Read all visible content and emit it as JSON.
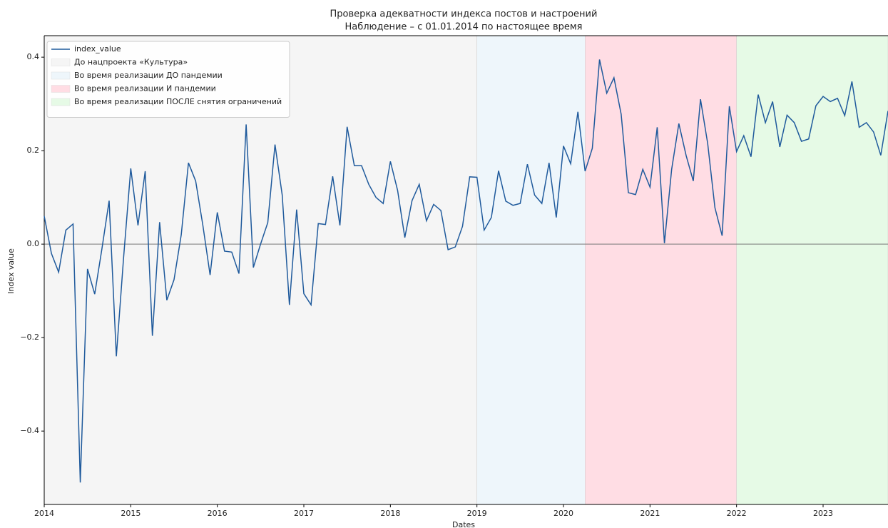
{
  "chart_data": {
    "type": "line",
    "title": "Проверка адекватности индекса постов и настроений",
    "subtitle": "Наблюдение – с 01.01.2014 по настоящее время",
    "xlabel": "Dates",
    "ylabel": "Index value",
    "x": [
      "2014-01",
      "2014-02",
      "2014-03",
      "2014-04",
      "2014-05",
      "2014-06",
      "2014-07",
      "2014-08",
      "2014-09",
      "2014-10",
      "2014-11",
      "2014-12",
      "2015-01",
      "2015-02",
      "2015-03",
      "2015-04",
      "2015-05",
      "2015-06",
      "2015-07",
      "2015-08",
      "2015-09",
      "2015-10",
      "2015-11",
      "2015-12",
      "2016-01",
      "2016-02",
      "2016-03",
      "2016-04",
      "2016-05",
      "2016-06",
      "2016-07",
      "2016-08",
      "2016-09",
      "2016-10",
      "2016-11",
      "2016-12",
      "2017-01",
      "2017-02",
      "2017-03",
      "2017-04",
      "2017-05",
      "2017-06",
      "2017-07",
      "2017-08",
      "2017-09",
      "2017-10",
      "2017-11",
      "2017-12",
      "2018-01",
      "2018-02",
      "2018-03",
      "2018-04",
      "2018-05",
      "2018-06",
      "2018-07",
      "2018-08",
      "2018-09",
      "2018-10",
      "2018-11",
      "2018-12",
      "2019-01",
      "2019-02",
      "2019-03",
      "2019-04",
      "2019-05",
      "2019-06",
      "2019-07",
      "2019-08",
      "2019-09",
      "2019-10",
      "2019-11",
      "2019-12",
      "2020-01",
      "2020-02",
      "2020-03",
      "2020-04",
      "2020-05",
      "2020-06",
      "2020-07",
      "2020-08",
      "2020-09",
      "2020-10",
      "2020-11",
      "2020-12",
      "2021-01",
      "2021-02",
      "2021-03",
      "2021-04",
      "2021-05",
      "2021-06",
      "2021-07",
      "2021-08",
      "2021-09",
      "2021-10",
      "2021-11",
      "2021-12",
      "2022-01",
      "2022-02",
      "2022-03",
      "2022-04",
      "2022-05",
      "2022-06",
      "2022-07",
      "2022-08",
      "2022-09",
      "2022-10",
      "2022-11",
      "2022-12",
      "2023-01",
      "2023-02",
      "2023-03",
      "2023-04",
      "2023-05",
      "2023-06",
      "2023-07",
      "2023-08",
      "2023-09",
      "2023-10"
    ],
    "series": [
      {
        "name": "index_value",
        "color": "#1f5a9c",
        "values": [
          0.06,
          -0.02,
          -0.06,
          0.03,
          0.043,
          -0.51,
          -0.053,
          -0.107,
          -0.01,
          0.093,
          -0.24,
          -0.03,
          0.162,
          0.04,
          0.156,
          -0.196,
          0.047,
          -0.12,
          -0.076,
          0.02,
          0.174,
          0.135,
          0.04,
          -0.066,
          0.068,
          -0.015,
          -0.017,
          -0.063,
          0.256,
          -0.05,
          0.0,
          0.046,
          0.213,
          0.105,
          -0.13,
          0.074,
          -0.106,
          -0.13,
          0.044,
          0.042,
          0.145,
          0.04,
          0.251,
          0.168,
          0.168,
          0.128,
          0.1,
          0.087,
          0.177,
          0.115,
          0.014,
          0.093,
          0.128,
          0.05,
          0.085,
          0.072,
          -0.012,
          -0.006,
          0.038,
          0.144,
          0.143,
          0.03,
          0.057,
          0.157,
          0.092,
          0.083,
          0.087,
          0.171,
          0.105,
          0.087,
          0.174,
          0.057,
          0.21,
          0.172,
          0.283,
          0.156,
          0.205,
          0.395,
          0.323,
          0.356,
          0.278,
          0.11,
          0.106,
          0.16,
          0.122,
          0.25,
          0.002,
          0.16,
          0.258,
          0.19,
          0.135,
          0.31,
          0.215,
          0.078,
          0.018,
          0.295,
          0.198,
          0.232,
          0.187,
          0.32,
          0.26,
          0.305,
          0.208,
          0.276,
          0.26,
          0.22,
          0.225,
          0.296,
          0.316,
          0.305,
          0.312,
          0.275,
          0.348,
          0.25,
          0.26,
          0.24,
          0.19,
          0.285
        ]
      }
    ],
    "spans": [
      {
        "name": "До нацпроекта «Культура»",
        "color": "#f5f5f5",
        "start": "2014-01",
        "end": "2019-01"
      },
      {
        "name": "Во время реализации ДО пандемии",
        "color": "#eef6fb",
        "start": "2019-01",
        "end": "2020-04"
      },
      {
        "name": "Во время реализации И пандемии",
        "color": "#ffdde4",
        "start": "2020-04",
        "end": "2022-01"
      },
      {
        "name": "Во время реализации ПОСЛЕ снятия ограничений",
        "color": "#e6fae6",
        "start": "2022-01",
        "end": "2023-10"
      }
    ],
    "hline": 0,
    "xlim": [
      "2014-01",
      "2023-10"
    ],
    "xticks": [
      2014,
      2015,
      2016,
      2017,
      2018,
      2019,
      2020,
      2021,
      2022,
      2023
    ],
    "ylim": [
      -0.557,
      0.446
    ],
    "yticks": [
      {
        "value": -0.4,
        "label": "−0.4"
      },
      {
        "value": -0.2,
        "label": "−0.2"
      },
      {
        "value": 0.0,
        "label": "0.0"
      },
      {
        "value": 0.2,
        "label": "0.2"
      },
      {
        "value": 0.4,
        "label": "0.4"
      }
    ],
    "legend": "upper left"
  }
}
